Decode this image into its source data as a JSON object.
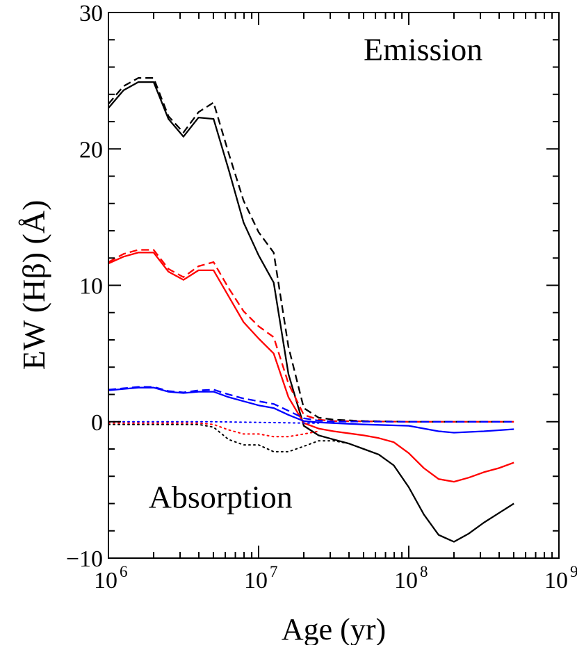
{
  "chart_data": {
    "type": "line",
    "title": "",
    "xlabel": "Age (yr)",
    "ylabel": "EW (Hβ) (Å)",
    "xscale": "log",
    "xlim": [
      1000000,
      1000000000
    ],
    "ylim": [
      -10,
      30
    ],
    "grid": false,
    "legend": "none",
    "x_ticks": [
      {
        "value": 1000000,
        "base": "10",
        "exp": "6"
      },
      {
        "value": 10000000,
        "base": "10",
        "exp": "7"
      },
      {
        "value": 100000000,
        "base": "10",
        "exp": "8"
      },
      {
        "value": 1000000000,
        "base": "10",
        "exp": "9"
      }
    ],
    "y_ticks": [
      {
        "value": -10,
        "label": "−10"
      },
      {
        "value": 0,
        "label": "0"
      },
      {
        "value": 10,
        "label": "10"
      },
      {
        "value": 20,
        "label": "20"
      },
      {
        "value": 30,
        "label": "30"
      }
    ],
    "annotations": [
      {
        "text": "Emission",
        "x": 50000000,
        "y": 26.5
      },
      {
        "text": "Absorption",
        "x": 1850000,
        "y": -6.3
      }
    ],
    "series": [
      {
        "color": "#000000",
        "style": "solid",
        "points": [
          [
            1000000,
            23
          ],
          [
            1260000,
            24.3
          ],
          [
            1580000,
            24.9
          ],
          [
            2000000,
            24.9
          ],
          [
            2510000,
            22.2
          ],
          [
            3160000,
            20.9
          ],
          [
            3980000,
            22.3
          ],
          [
            5010000,
            22.2
          ],
          [
            6310000,
            18.5
          ],
          [
            7940000,
            14.6
          ],
          [
            10000000,
            12.2
          ],
          [
            12600000,
            10.2
          ],
          [
            15800000,
            3.5
          ],
          [
            20000000,
            -0.3
          ],
          [
            25100000,
            -1
          ],
          [
            31600000,
            -1.3
          ],
          [
            39800000,
            -1.6
          ],
          [
            50100000,
            -2
          ],
          [
            63100000,
            -2.4
          ],
          [
            79400000,
            -3.2
          ],
          [
            100000000,
            -4.8
          ],
          [
            126000000,
            -6.8
          ],
          [
            158000000,
            -8.3
          ],
          [
            200000000,
            -8.8
          ],
          [
            251000000,
            -8.2
          ],
          [
            316000000,
            -7.4
          ],
          [
            398000000,
            -6.7
          ],
          [
            501000000,
            -6
          ]
        ]
      },
      {
        "color": "#000000",
        "style": "dashed",
        "points": [
          [
            1000000,
            23.3
          ],
          [
            1260000,
            24.6
          ],
          [
            1580000,
            25.2
          ],
          [
            2000000,
            25.2
          ],
          [
            2510000,
            22.4
          ],
          [
            3160000,
            21.2
          ],
          [
            3980000,
            22.7
          ],
          [
            5010000,
            23.4
          ],
          [
            6310000,
            19.7
          ],
          [
            7940000,
            16.2
          ],
          [
            10000000,
            13.9
          ],
          [
            12600000,
            12.4
          ],
          [
            15800000,
            5.5
          ],
          [
            20000000,
            1
          ],
          [
            25100000,
            0.3
          ],
          [
            31600000,
            0.15
          ],
          [
            50100000,
            0.05
          ],
          [
            100000000,
            0
          ],
          [
            200000000,
            0
          ],
          [
            501000000,
            0
          ]
        ]
      },
      {
        "color": "#000000",
        "style": "dotted",
        "points": [
          [
            1000000,
            -0.2
          ],
          [
            2000000,
            -0.2
          ],
          [
            3980000,
            -0.2
          ],
          [
            5010000,
            -0.4
          ],
          [
            6310000,
            -1.3
          ],
          [
            7940000,
            -1.7
          ],
          [
            10000000,
            -1.7
          ],
          [
            12600000,
            -2.2
          ],
          [
            15800000,
            -2.2
          ],
          [
            20000000,
            -1.8
          ],
          [
            25100000,
            -1.4
          ],
          [
            31600000,
            -1.4
          ],
          [
            39800000,
            -1.6
          ]
        ]
      },
      {
        "color": "#ff0000",
        "style": "solid",
        "points": [
          [
            1000000,
            11.6
          ],
          [
            1260000,
            12.1
          ],
          [
            1580000,
            12.4
          ],
          [
            2000000,
            12.4
          ],
          [
            2510000,
            11
          ],
          [
            3160000,
            10.4
          ],
          [
            3980000,
            11.1
          ],
          [
            5010000,
            11.1
          ],
          [
            6310000,
            9.2
          ],
          [
            7940000,
            7.3
          ],
          [
            10000000,
            6.1
          ],
          [
            12600000,
            5
          ],
          [
            15800000,
            1.8
          ],
          [
            20000000,
            -0.1
          ],
          [
            25100000,
            -0.5
          ],
          [
            31600000,
            -0.7
          ],
          [
            50100000,
            -1
          ],
          [
            63100000,
            -1.2
          ],
          [
            79400000,
            -1.5
          ],
          [
            100000000,
            -2.3
          ],
          [
            126000000,
            -3.4
          ],
          [
            158000000,
            -4.2
          ],
          [
            200000000,
            -4.4
          ],
          [
            251000000,
            -4.1
          ],
          [
            316000000,
            -3.7
          ],
          [
            398000000,
            -3.4
          ],
          [
            501000000,
            -3
          ]
        ]
      },
      {
        "color": "#ff0000",
        "style": "dashed",
        "points": [
          [
            1000000,
            11.7
          ],
          [
            1260000,
            12.3
          ],
          [
            1580000,
            12.6
          ],
          [
            2000000,
            12.6
          ],
          [
            2510000,
            11.2
          ],
          [
            3160000,
            10.6
          ],
          [
            3980000,
            11.4
          ],
          [
            5010000,
            11.7
          ],
          [
            6310000,
            9.8
          ],
          [
            7940000,
            8.1
          ],
          [
            10000000,
            7
          ],
          [
            12600000,
            6.2
          ],
          [
            15800000,
            2.8
          ],
          [
            20000000,
            0.5
          ],
          [
            25100000,
            0.15
          ],
          [
            31600000,
            0.05
          ],
          [
            100000000,
            0
          ],
          [
            501000000,
            0
          ]
        ]
      },
      {
        "color": "#ff0000",
        "style": "dotted",
        "points": [
          [
            1000000,
            -0.1
          ],
          [
            3980000,
            -0.1
          ],
          [
            5010000,
            -0.2
          ],
          [
            6310000,
            -0.6
          ],
          [
            7940000,
            -0.9
          ],
          [
            10000000,
            -0.9
          ],
          [
            12600000,
            -1.1
          ],
          [
            15800000,
            -1.1
          ],
          [
            20000000,
            -0.9
          ],
          [
            25100000,
            -0.7
          ]
        ]
      },
      {
        "color": "#0000ff",
        "style": "solid",
        "points": [
          [
            1000000,
            2.3
          ],
          [
            1260000,
            2.4
          ],
          [
            1580000,
            2.5
          ],
          [
            2000000,
            2.5
          ],
          [
            2510000,
            2.2
          ],
          [
            3160000,
            2.1
          ],
          [
            3980000,
            2.2
          ],
          [
            5010000,
            2.2
          ],
          [
            6310000,
            1.8
          ],
          [
            7940000,
            1.5
          ],
          [
            10000000,
            1.2
          ],
          [
            12600000,
            1
          ],
          [
            15800000,
            0.5
          ],
          [
            20000000,
            0.05
          ],
          [
            25100000,
            -0.05
          ],
          [
            31600000,
            -0.1
          ],
          [
            50100000,
            -0.2
          ],
          [
            100000000,
            -0.3
          ],
          [
            158000000,
            -0.7
          ],
          [
            200000000,
            -0.8
          ],
          [
            316000000,
            -0.7
          ],
          [
            501000000,
            -0.55
          ]
        ]
      },
      {
        "color": "#0000ff",
        "style": "dashed",
        "points": [
          [
            1000000,
            2.35
          ],
          [
            1260000,
            2.45
          ],
          [
            1580000,
            2.55
          ],
          [
            2000000,
            2.55
          ],
          [
            2510000,
            2.25
          ],
          [
            3160000,
            2.15
          ],
          [
            3980000,
            2.3
          ],
          [
            5010000,
            2.35
          ],
          [
            6310000,
            2
          ],
          [
            7940000,
            1.7
          ],
          [
            10000000,
            1.5
          ],
          [
            12600000,
            1.3
          ],
          [
            15800000,
            0.8
          ],
          [
            20000000,
            0.25
          ],
          [
            25100000,
            0.08
          ],
          [
            31600000,
            0.02
          ],
          [
            100000000,
            0
          ],
          [
            501000000,
            0
          ]
        ]
      },
      {
        "color": "#0000ff",
        "style": "dotted",
        "points": [
          [
            1000000,
            0
          ],
          [
            5010000,
            0
          ],
          [
            10000000,
            -0.05
          ],
          [
            20000000,
            -0.1
          ],
          [
            25100000,
            -0.1
          ]
        ]
      }
    ]
  }
}
